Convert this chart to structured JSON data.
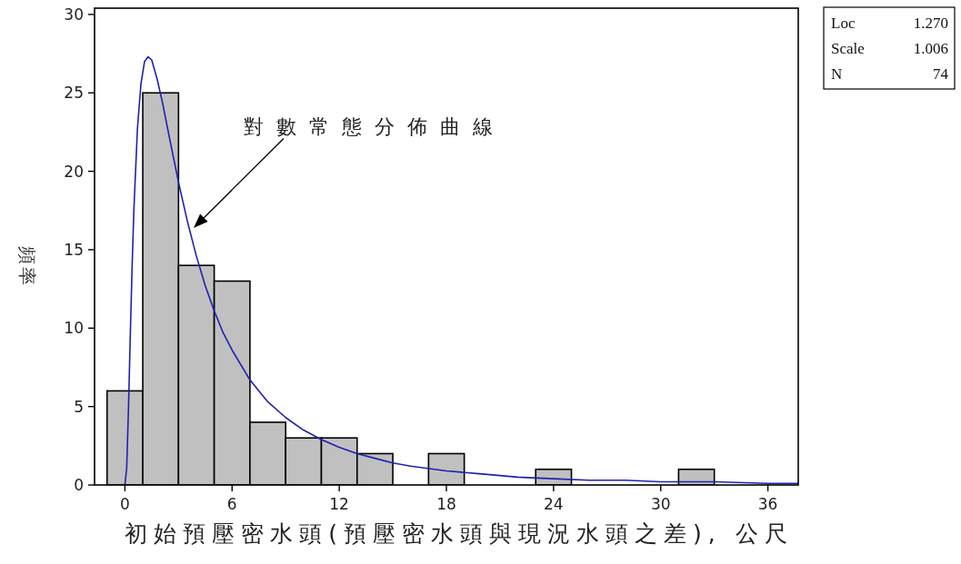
{
  "chart_data": {
    "type": "histogram",
    "xlabel": "初始預壓密水頭(預壓密水頭與現況水頭之差), 公尺",
    "ylabel": "頻率",
    "bins": [
      -1,
      1,
      3,
      5,
      7,
      9,
      11,
      13,
      15,
      17,
      19,
      21,
      23,
      25,
      27,
      29,
      31,
      33
    ],
    "values": [
      6,
      25,
      14,
      13,
      4,
      3,
      3,
      2,
      0,
      2,
      0,
      0,
      1,
      0,
      0,
      0,
      1
    ],
    "color": "#c0c0c0",
    "series": [
      {
        "type": "line",
        "color": "#2020b0",
        "x": [
          0,
          0.1,
          0.2,
          0.3,
          0.4,
          0.5,
          0.7,
          0.9,
          1.1,
          1.3,
          1.5,
          1.8,
          2.1,
          2.5,
          3,
          3.5,
          4,
          4.5,
          5,
          5.5,
          6,
          7,
          8,
          9,
          10,
          11,
          12,
          13,
          14,
          15,
          16,
          18,
          20,
          22,
          24,
          26,
          28,
          30,
          33,
          36,
          37.7
        ],
        "values": [
          0,
          1.1,
          4.9,
          9.5,
          13.8,
          17.5,
          22.7,
          25.6,
          27.0,
          27.3,
          27.1,
          25.9,
          24.4,
          22.1,
          19.3,
          16.8,
          14.6,
          12.7,
          11.1,
          9.7,
          8.6,
          6.7,
          5.3,
          4.3,
          3.5,
          2.9,
          2.4,
          2.0,
          1.7,
          1.4,
          1.2,
          0.9,
          0.7,
          0.5,
          0.4,
          0.3,
          0.3,
          0.2,
          0.2,
          0.1,
          0.1
        ]
      }
    ],
    "xlim": [
      -1.7,
      37.7
    ],
    "ylim": [
      0,
      30.4
    ],
    "xticks": [
      0,
      6,
      12,
      18,
      24,
      30,
      36
    ],
    "yticks": [
      0,
      5,
      10,
      15,
      20,
      25,
      30
    ],
    "annotations": [
      "對數常態分佈曲線",
      "Loc 1.270",
      "Scale 1.006",
      "N 74"
    ]
  }
}
